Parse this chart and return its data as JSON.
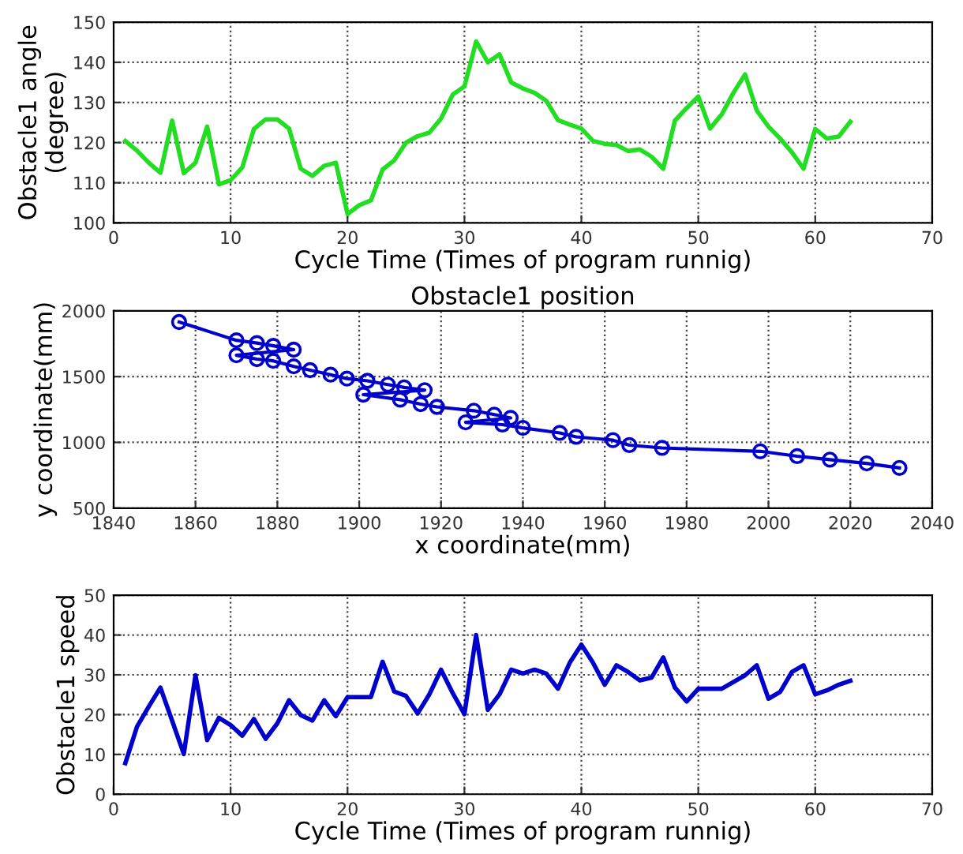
{
  "chart_data": [
    {
      "type": "line",
      "xlabel": "Cycle Time (Times of program runnig)",
      "ylabel": "Obstacle1 angle\n(degree)",
      "xlim": [
        0,
        70
      ],
      "ylim": [
        100,
        150
      ],
      "xticks": [
        0,
        10,
        20,
        30,
        40,
        50,
        60,
        70
      ],
      "yticks": [
        100,
        110,
        120,
        130,
        140,
        150
      ],
      "grid": true,
      "series": [
        {
          "color": "#22dd22",
          "x": [
            1,
            2,
            3,
            4,
            5,
            6,
            7,
            8,
            9,
            10,
            11,
            12,
            13,
            14,
            15,
            16,
            17,
            18,
            19,
            20,
            21,
            22,
            23,
            24,
            25,
            26,
            27,
            28,
            29,
            30,
            31,
            32,
            33,
            34,
            35,
            36,
            37,
            38,
            39,
            40,
            41,
            42,
            43,
            44,
            45,
            46,
            47,
            48,
            49,
            50,
            51,
            52,
            53,
            54,
            55,
            56,
            57,
            58,
            59,
            60,
            61,
            62,
            63
          ],
          "values": [
            120.4,
            118,
            115,
            112.5,
            125.5,
            112.4,
            115,
            124,
            109.6,
            110.6,
            113.8,
            123.4,
            125.8,
            125.8,
            123.5,
            113.5,
            111.7,
            114.2,
            115,
            102.2,
            104.4,
            105.6,
            113.3,
            115.6,
            120,
            121.6,
            122.5,
            126,
            132,
            134,
            145.2,
            140,
            142,
            135,
            133.5,
            132.4,
            130.4,
            125.6,
            124.5,
            123.5,
            120.4,
            119.7,
            119.4,
            117.9,
            118.3,
            116.5,
            113.5,
            125.5,
            128.6,
            131.5,
            123.5,
            127,
            132.4,
            137,
            128,
            124,
            121,
            117.6,
            113.5,
            123.4,
            121,
            121.5,
            125.2
          ]
        }
      ]
    },
    {
      "type": "line",
      "title": "Obstacle1 position",
      "xlabel": "x coordinate(mm)",
      "ylabel": "y coordinate(mm)",
      "xlim": [
        1840,
        2040
      ],
      "ylim": [
        500,
        2000
      ],
      "xticks": [
        1840,
        1860,
        1880,
        1900,
        1920,
        1940,
        1960,
        1980,
        2000,
        2020,
        2040
      ],
      "yticks": [
        500,
        1000,
        1500,
        2000
      ],
      "grid": true,
      "marker": "circle",
      "series": [
        {
          "color": "#0000cc",
          "x": [
            1856,
            1870,
            1875,
            1879,
            1884,
            1870,
            1875,
            1879,
            1884,
            1888,
            1893,
            1897,
            1902,
            1907,
            1911,
            1916,
            1901,
            1910,
            1915,
            1919,
            1928,
            1933,
            1937,
            1926,
            1935,
            1940,
            1949,
            1953,
            1962,
            1966,
            1974,
            1998,
            2007,
            2015,
            2024,
            2032
          ],
          "values": [
            1915,
            1776,
            1755,
            1734,
            1705,
            1662,
            1633,
            1620,
            1578,
            1549,
            1515,
            1485,
            1468,
            1439,
            1418,
            1397,
            1363,
            1325,
            1291,
            1270,
            1241,
            1211,
            1186,
            1152,
            1135,
            1110,
            1072,
            1042,
            1017,
            979,
            958,
            932,
            895,
            869,
            840,
            806
          ]
        }
      ]
    },
    {
      "type": "line",
      "xlabel": "Cycle Time (Times of program runnig)",
      "ylabel": "Obstacle1 speed",
      "xlim": [
        0,
        70
      ],
      "ylim": [
        0,
        50
      ],
      "xticks": [
        0,
        10,
        20,
        30,
        40,
        50,
        60,
        70
      ],
      "yticks": [
        0,
        10,
        20,
        30,
        40,
        50
      ],
      "grid": true,
      "series": [
        {
          "color": "#0000cc",
          "x": [
            1,
            2,
            3,
            4,
            5,
            6,
            7,
            8,
            9,
            10,
            11,
            12,
            13,
            14,
            15,
            16,
            17,
            18,
            19,
            20,
            21,
            22,
            23,
            24,
            25,
            26,
            27,
            28,
            29,
            30,
            31,
            32,
            33,
            34,
            35,
            36,
            37,
            38,
            39,
            40,
            41,
            42,
            43,
            44,
            45,
            46,
            47,
            48,
            49,
            50,
            51,
            52,
            53,
            54,
            55,
            56,
            57,
            58,
            59,
            60,
            61,
            62,
            63
          ],
          "values": [
            7.8,
            17,
            22,
            26.8,
            18.5,
            10.1,
            29.9,
            13.6,
            19.2,
            17.4,
            14.7,
            18.9,
            13.9,
            17.8,
            23.6,
            19.9,
            18.5,
            23.6,
            19.6,
            24.4,
            24.4,
            24.4,
            33.3,
            25.8,
            24.7,
            20.3,
            25.1,
            31.3,
            25.4,
            20.1,
            40,
            21.2,
            25.1,
            31.3,
            30.3,
            31.3,
            30.3,
            26.5,
            33,
            37.6,
            33,
            27.5,
            32.4,
            30.7,
            28.6,
            29.3,
            34.4,
            26.8,
            23.3,
            26.5,
            26.5,
            26.5,
            28.2,
            29.9,
            32.4,
            24,
            25.7,
            30.7,
            32.4,
            25.1,
            26.1,
            27.5,
            28.5
          ]
        }
      ]
    }
  ]
}
